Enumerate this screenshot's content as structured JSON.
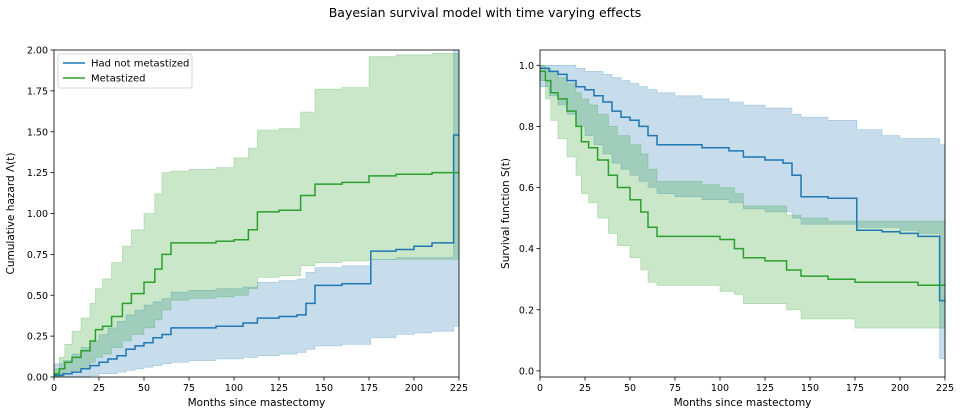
{
  "figure": {
    "title": "Bayesian survival model with time varying effects"
  },
  "colors": {
    "not_metastized": "#1f77b4",
    "metastized": "#2ca02c"
  },
  "chart_data": [
    {
      "type": "line",
      "step": true,
      "title": "",
      "xlabel": "Months since mastectomy",
      "ylabel": "Cumulative hazard Λ(t)",
      "xlim": [
        0,
        225
      ],
      "ylim": [
        0,
        2.0
      ],
      "xticks": [
        0,
        25,
        50,
        75,
        100,
        125,
        150,
        175,
        200,
        225
      ],
      "yticks": [
        0.0,
        0.25,
        0.5,
        0.75,
        1.0,
        1.25,
        1.5,
        1.75,
        2.0
      ],
      "ytick_labels": [
        "0.00",
        "0.25",
        "0.50",
        "0.75",
        "1.00",
        "1.25",
        "1.50",
        "1.75",
        "2.00"
      ],
      "grid": false,
      "legend": {
        "position": "top-left",
        "entries": [
          "Had not metastized",
          "Metastized"
        ]
      },
      "series": [
        {
          "name": "Had not metastized",
          "color": "#1f77b4",
          "x": [
            0,
            5,
            10,
            15,
            20,
            25,
            30,
            35,
            40,
            45,
            50,
            55,
            60,
            65,
            75,
            90,
            105,
            113,
            125,
            135,
            140,
            145,
            160,
            176,
            190,
            200,
            210,
            222,
            225
          ],
          "y": [
            0.01,
            0.02,
            0.03,
            0.05,
            0.07,
            0.09,
            0.11,
            0.13,
            0.17,
            0.19,
            0.21,
            0.24,
            0.26,
            0.3,
            0.3,
            0.31,
            0.33,
            0.36,
            0.37,
            0.38,
            0.45,
            0.56,
            0.57,
            0.77,
            0.78,
            0.8,
            0.82,
            1.48,
            1.48
          ],
          "lower": [
            0.0,
            0.0,
            0.0,
            0.0,
            0.01,
            0.02,
            0.02,
            0.03,
            0.04,
            0.05,
            0.06,
            0.07,
            0.08,
            0.09,
            0.1,
            0.11,
            0.12,
            0.13,
            0.14,
            0.15,
            0.17,
            0.19,
            0.2,
            0.24,
            0.26,
            0.27,
            0.28,
            0.31,
            0.31
          ],
          "upper": [
            0.08,
            0.1,
            0.14,
            0.18,
            0.22,
            0.26,
            0.3,
            0.34,
            0.38,
            0.41,
            0.44,
            0.46,
            0.48,
            0.52,
            0.53,
            0.54,
            0.55,
            0.58,
            0.59,
            0.6,
            0.64,
            0.67,
            0.68,
            0.72,
            0.73,
            0.73,
            0.73,
            2.0,
            2.0
          ]
        },
        {
          "name": "Metastized",
          "color": "#2ca02c",
          "x": [
            0,
            3,
            6,
            10,
            15,
            20,
            23,
            27,
            32,
            38,
            43,
            50,
            56,
            60,
            65,
            75,
            90,
            100,
            108,
            113,
            125,
            137,
            145,
            160,
            175,
            190,
            210,
            225
          ],
          "y": [
            0.02,
            0.05,
            0.09,
            0.12,
            0.16,
            0.22,
            0.29,
            0.31,
            0.37,
            0.45,
            0.51,
            0.58,
            0.66,
            0.75,
            0.82,
            0.82,
            0.83,
            0.84,
            0.9,
            1.01,
            1.02,
            1.11,
            1.18,
            1.19,
            1.23,
            1.24,
            1.25,
            1.25
          ],
          "lower": [
            0.0,
            0.01,
            0.02,
            0.04,
            0.06,
            0.09,
            0.12,
            0.14,
            0.18,
            0.22,
            0.26,
            0.3,
            0.35,
            0.41,
            0.47,
            0.48,
            0.49,
            0.5,
            0.54,
            0.61,
            0.62,
            0.68,
            0.7,
            0.71,
            0.72,
            0.72,
            0.72,
            0.72
          ],
          "upper": [
            0.05,
            0.12,
            0.2,
            0.28,
            0.36,
            0.45,
            0.54,
            0.6,
            0.7,
            0.8,
            0.9,
            1.0,
            1.12,
            1.25,
            1.26,
            1.27,
            1.28,
            1.34,
            1.4,
            1.51,
            1.52,
            1.62,
            1.76,
            1.77,
            1.96,
            1.97,
            1.98,
            2.0
          ]
        }
      ]
    },
    {
      "type": "line",
      "step": true,
      "title": "",
      "xlabel": "Months since mastectomy",
      "ylabel": "Survival function S(t)",
      "xlim": [
        0,
        225
      ],
      "ylim": [
        -0.02,
        1.05
      ],
      "xticks": [
        0,
        25,
        50,
        75,
        100,
        125,
        150,
        175,
        200,
        225
      ],
      "yticks": [
        0.0,
        0.2,
        0.4,
        0.6,
        0.8,
        1.0
      ],
      "ytick_labels": [
        "0.0",
        "0.2",
        "0.4",
        "0.6",
        "0.8",
        "1.0"
      ],
      "grid": false,
      "series": [
        {
          "name": "Had not metastized",
          "color": "#1f77b4",
          "x": [
            0,
            5,
            10,
            15,
            20,
            25,
            30,
            35,
            40,
            45,
            50,
            55,
            60,
            65,
            75,
            90,
            105,
            113,
            125,
            135,
            140,
            145,
            160,
            176,
            190,
            200,
            210,
            222,
            225
          ],
          "y": [
            0.99,
            0.98,
            0.97,
            0.95,
            0.93,
            0.92,
            0.9,
            0.88,
            0.85,
            0.83,
            0.82,
            0.8,
            0.77,
            0.74,
            0.74,
            0.73,
            0.72,
            0.7,
            0.69,
            0.68,
            0.64,
            0.57,
            0.565,
            0.46,
            0.455,
            0.45,
            0.44,
            0.23,
            0.23
          ],
          "lower": [
            0.93,
            0.9,
            0.87,
            0.84,
            0.8,
            0.77,
            0.74,
            0.71,
            0.68,
            0.66,
            0.64,
            0.62,
            0.6,
            0.58,
            0.57,
            0.56,
            0.55,
            0.53,
            0.52,
            0.52,
            0.5,
            0.48,
            0.48,
            0.47,
            0.47,
            0.46,
            0.45,
            0.04,
            0.04
          ],
          "upper": [
            1.0,
            1.0,
            1.0,
            1.0,
            0.99,
            0.98,
            0.98,
            0.97,
            0.96,
            0.95,
            0.94,
            0.93,
            0.92,
            0.91,
            0.9,
            0.89,
            0.88,
            0.87,
            0.86,
            0.86,
            0.84,
            0.83,
            0.82,
            0.79,
            0.77,
            0.76,
            0.76,
            0.74,
            0.74
          ]
        },
        {
          "name": "Metastized",
          "color": "#2ca02c",
          "x": [
            0,
            3,
            6,
            10,
            15,
            20,
            23,
            27,
            32,
            38,
            43,
            50,
            56,
            60,
            65,
            75,
            90,
            100,
            108,
            113,
            125,
            137,
            145,
            160,
            175,
            190,
            210,
            225
          ],
          "y": [
            0.98,
            0.95,
            0.91,
            0.89,
            0.85,
            0.8,
            0.75,
            0.73,
            0.69,
            0.64,
            0.6,
            0.56,
            0.52,
            0.47,
            0.44,
            0.44,
            0.44,
            0.43,
            0.4,
            0.37,
            0.36,
            0.33,
            0.31,
            0.3,
            0.29,
            0.29,
            0.28,
            0.28
          ],
          "lower": [
            0.95,
            0.89,
            0.82,
            0.76,
            0.7,
            0.64,
            0.58,
            0.55,
            0.5,
            0.45,
            0.41,
            0.37,
            0.33,
            0.29,
            0.28,
            0.28,
            0.28,
            0.26,
            0.25,
            0.22,
            0.22,
            0.2,
            0.17,
            0.17,
            0.14,
            0.14,
            0.14,
            0.13
          ],
          "upper": [
            1.0,
            0.99,
            0.98,
            0.96,
            0.94,
            0.91,
            0.89,
            0.87,
            0.84,
            0.8,
            0.77,
            0.74,
            0.71,
            0.66,
            0.62,
            0.62,
            0.61,
            0.6,
            0.58,
            0.54,
            0.54,
            0.51,
            0.5,
            0.49,
            0.49,
            0.49,
            0.49,
            0.49
          ]
        }
      ]
    }
  ]
}
